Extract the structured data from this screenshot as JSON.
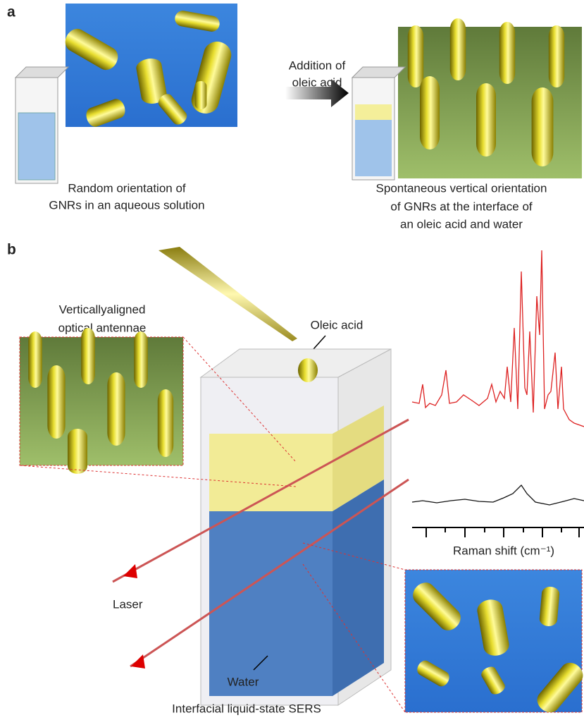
{
  "panel_a": {
    "label": "a",
    "left_caption": [
      "Random orientation of",
      "GNRs in an aqueous solution"
    ],
    "arrow_label": [
      "Addition of",
      "oleic acid"
    ],
    "right_caption": [
      "Spontaneous vertical orientation",
      "of GNRs at the interface of",
      "an oleic acid and water"
    ]
  },
  "panel_b": {
    "label": "b",
    "inset_label": [
      "Verticallyaligned",
      "optical antennae"
    ],
    "oleic_acid": "Oleic acid",
    "laser": "Laser",
    "water": "Water",
    "caption": "Interfacial liquid-state SERS",
    "spectrum_axis_label": "Raman shift (cm⁻¹)"
  }
}
